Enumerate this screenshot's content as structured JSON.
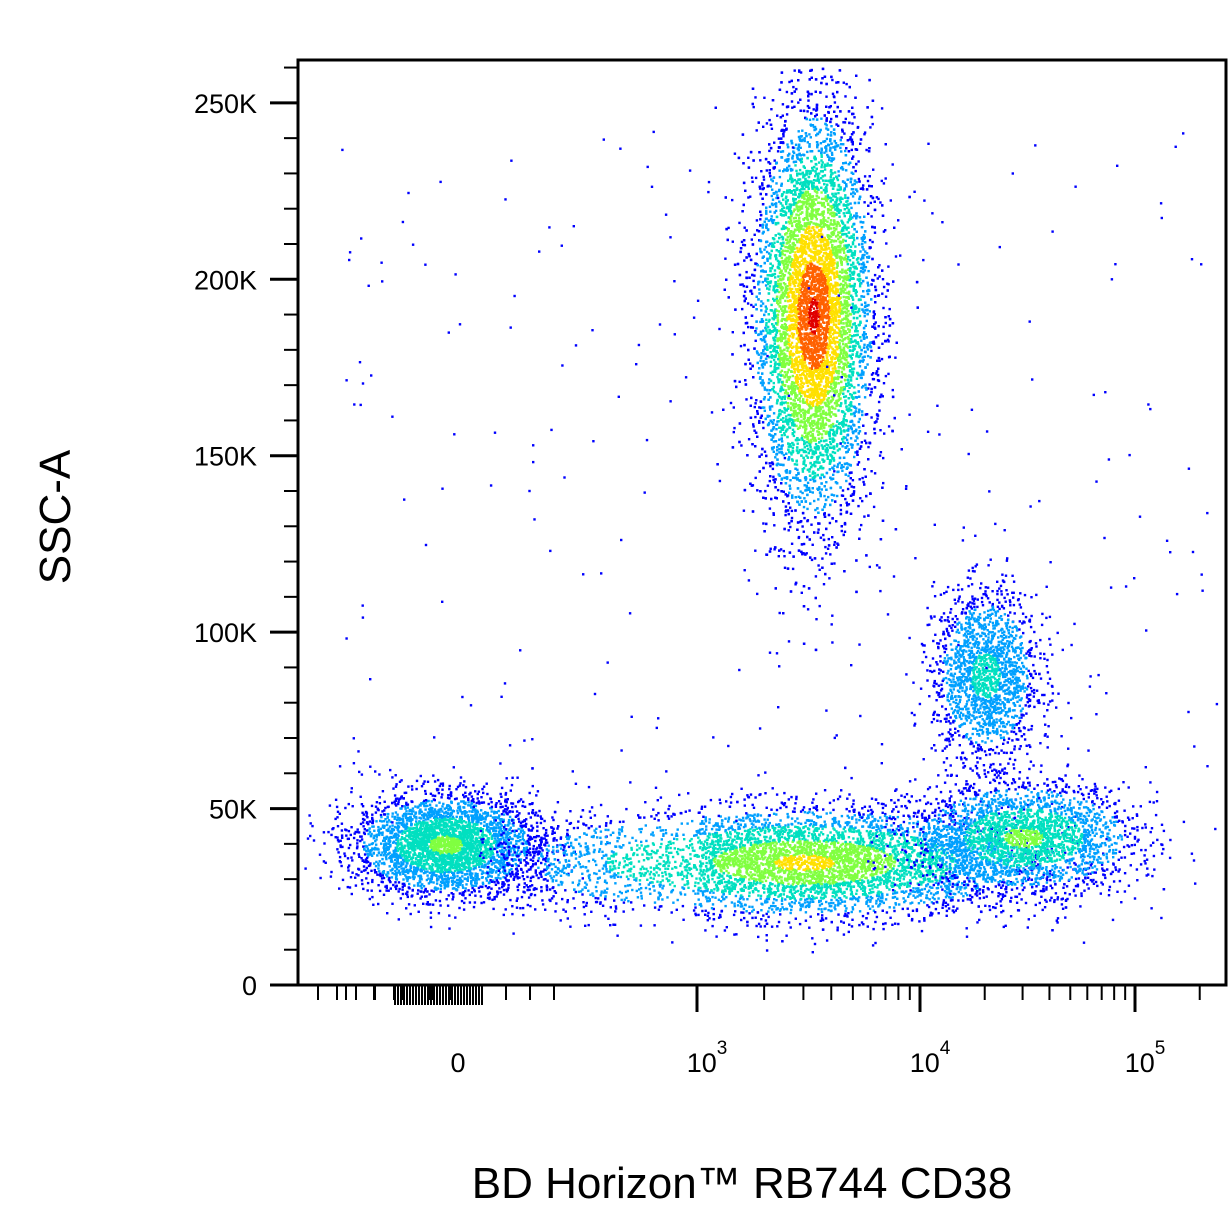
{
  "chart_data": {
    "type": "scatter",
    "style": "density-dot-plot",
    "xlabel": "BD Horizon™ RB744 CD38",
    "ylabel": "SSC-A",
    "x_scale": "biexponential",
    "y_scale": "linear",
    "xlim": [
      -400,
      150000
    ],
    "ylim": [
      0,
      262144
    ],
    "y_ticks": [
      {
        "value": 0,
        "label": "0"
      },
      {
        "value": 50000,
        "label": "50K"
      },
      {
        "value": 100000,
        "label": "100K"
      },
      {
        "value": 150000,
        "label": "150K"
      },
      {
        "value": 200000,
        "label": "200K"
      },
      {
        "value": 250000,
        "label": "250K"
      }
    ],
    "x_ticks": [
      {
        "value": 0,
        "label": "0",
        "exp": ""
      },
      {
        "value": 1000,
        "label": "10",
        "exp": "3"
      },
      {
        "value": 10000,
        "label": "10",
        "exp": "4"
      },
      {
        "value": 100000,
        "label": "10",
        "exp": "5"
      }
    ],
    "density_colors": [
      "#0000ff",
      "#00a0ff",
      "#00e0c0",
      "#80ff40",
      "#ffe000",
      "#ff6000",
      "#e00000"
    ],
    "populations": [
      {
        "cx": 3300,
        "cy": 190000,
        "sx_dec": 0.13,
        "sy": 28000,
        "n": 9000,
        "peak": "red"
      },
      {
        "cx": 20000,
        "cy": 88000,
        "sx_dec": 0.12,
        "sy": 12000,
        "n": 1800,
        "peak": "cyan"
      },
      {
        "cx": 150,
        "cy": 40000,
        "sx_lin": 120,
        "sy": 7000,
        "n": 3500,
        "peak": "green"
      },
      {
        "cx": 3000,
        "cy": 35000,
        "sx_dec": 0.5,
        "sy": 7500,
        "n": 5500,
        "peak": "yellow"
      },
      {
        "cx": 30000,
        "cy": 42000,
        "sx_dec": 0.25,
        "sy": 7500,
        "n": 2500,
        "peak": "green"
      }
    ]
  }
}
